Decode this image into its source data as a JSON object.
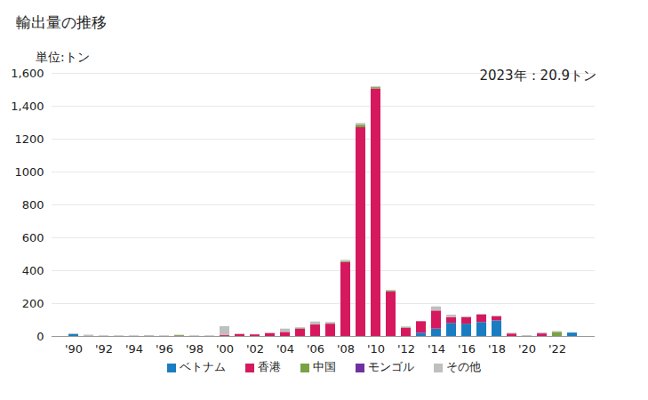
{
  "chart_data": {
    "type": "bar",
    "title": "輸出量の推移",
    "subtitle": "単位:トン",
    "annotation": "2023年：20.9トン",
    "stacked": true,
    "grid": true,
    "legend": "bottom",
    "categories": [
      "'90",
      null,
      "'92",
      null,
      "'94",
      null,
      "'96",
      null,
      "'98",
      null,
      "'00",
      null,
      "'02",
      null,
      "'04",
      null,
      "'06",
      null,
      "'08",
      null,
      "'10",
      null,
      "'12",
      null,
      "'14",
      null,
      "'16",
      null,
      "'18",
      null,
      "'20",
      null,
      "'22",
      null
    ],
    "series": [
      {
        "name": "ベトナム",
        "color": "#1a7dc1",
        "values": [
          12,
          0,
          0,
          0,
          0,
          0,
          0,
          0,
          0,
          0,
          0,
          0,
          0,
          0,
          0,
          0,
          0,
          0,
          0,
          0,
          0,
          0,
          0,
          20,
          45,
          80,
          75,
          85,
          95,
          0,
          0,
          0,
          0,
          20.9
        ]
      },
      {
        "name": "香港",
        "color": "#d6195f",
        "values": [
          0,
          0,
          0,
          0,
          0,
          0,
          0,
          0,
          0,
          0,
          5,
          12,
          10,
          18,
          25,
          45,
          70,
          75,
          450,
          1270,
          1505,
          270,
          50,
          70,
          110,
          35,
          40,
          45,
          25,
          15,
          0,
          15,
          0,
          0
        ]
      },
      {
        "name": "中国",
        "color": "#78a243",
        "values": [
          0,
          0,
          0,
          0,
          0,
          0,
          0,
          5,
          0,
          0,
          0,
          0,
          0,
          0,
          0,
          3,
          0,
          0,
          5,
          15,
          8,
          5,
          3,
          0,
          0,
          0,
          0,
          0,
          0,
          0,
          0,
          0,
          25,
          0
        ]
      },
      {
        "name": "モンゴル",
        "color": "#7030a0",
        "values": [
          0,
          0,
          0,
          0,
          0,
          0,
          0,
          0,
          0,
          0,
          0,
          0,
          0,
          0,
          0,
          0,
          0,
          0,
          0,
          0,
          0,
          0,
          0,
          0,
          0,
          0,
          0,
          0,
          0,
          0,
          0,
          3,
          0,
          0
        ]
      },
      {
        "name": "その他",
        "color": "#bfbfbf",
        "values": [
          5,
          8,
          4,
          4,
          4,
          6,
          4,
          3,
          4,
          4,
          55,
          3,
          2,
          3,
          20,
          5,
          18,
          10,
          8,
          10,
          5,
          5,
          5,
          0,
          25,
          15,
          5,
          5,
          5,
          5,
          5,
          3,
          5,
          0
        ]
      }
    ],
    "ylim": [
      0,
      1600
    ],
    "yticks": [
      0,
      200,
      400,
      600,
      800,
      1000,
      1200,
      {
        "value": 1400,
        "label": "1,400"
      },
      {
        "value": 1600,
        "label": "1,600"
      }
    ]
  }
}
